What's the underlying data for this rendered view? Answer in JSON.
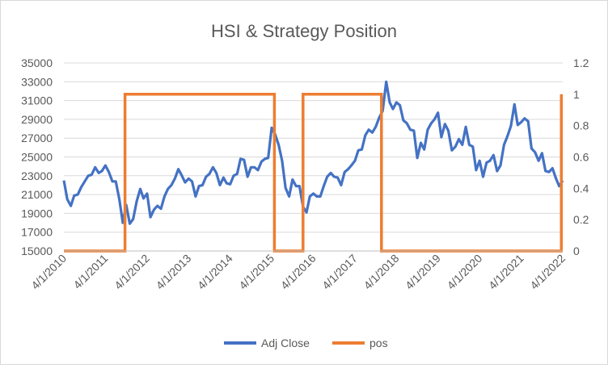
{
  "chart_data": {
    "type": "line",
    "title": "HSI & Strategy Position",
    "x_tick_labels": [
      "4/1/2010",
      "4/1/2011",
      "4/1/2012",
      "4/1/2013",
      "4/1/2014",
      "4/1/2015",
      "4/1/2016",
      "4/1/2017",
      "4/1/2018",
      "4/1/2019",
      "4/1/2020",
      "4/1/2021",
      "4/1/2022"
    ],
    "xlim": [
      "2010-04-01",
      "2022-04-01"
    ],
    "y_left": {
      "lim": [
        15000,
        35000
      ],
      "ticks": [
        "15000",
        "17000",
        "19000",
        "21000",
        "23000",
        "25000",
        "27000",
        "29000",
        "31000",
        "33000",
        "35000"
      ]
    },
    "y_right": {
      "lim": [
        0,
        1.2
      ],
      "ticks": [
        "0",
        "0.2",
        "0.4",
        "0.6",
        "0.8",
        "1",
        "1.2"
      ]
    },
    "grid": true,
    "legend_position": "bottom",
    "series": [
      {
        "name": "Adj Close",
        "axis": "left",
        "color": "#4472C4",
        "points": [
          [
            "2010-04-01",
            22500
          ],
          [
            "2010-05-01",
            20500
          ],
          [
            "2010-06-01",
            19800
          ],
          [
            "2010-07-01",
            20900
          ],
          [
            "2010-08-01",
            21000
          ],
          [
            "2010-09-01",
            21800
          ],
          [
            "2010-10-01",
            22400
          ],
          [
            "2010-11-01",
            23000
          ],
          [
            "2010-12-01",
            23100
          ],
          [
            "2011-01-01",
            23900
          ],
          [
            "2011-02-01",
            23300
          ],
          [
            "2011-03-01",
            23500
          ],
          [
            "2011-04-01",
            24100
          ],
          [
            "2011-05-01",
            23400
          ],
          [
            "2011-06-01",
            22400
          ],
          [
            "2011-07-01",
            22400
          ],
          [
            "2011-08-01",
            20500
          ],
          [
            "2011-09-01",
            18000
          ],
          [
            "2011-10-01",
            19900
          ],
          [
            "2011-11-01",
            17900
          ],
          [
            "2011-12-01",
            18400
          ],
          [
            "2012-01-01",
            20300
          ],
          [
            "2012-02-01",
            21600
          ],
          [
            "2012-03-01",
            20600
          ],
          [
            "2012-04-01",
            21100
          ],
          [
            "2012-05-01",
            18600
          ],
          [
            "2012-06-01",
            19400
          ],
          [
            "2012-07-01",
            19800
          ],
          [
            "2012-08-01",
            19500
          ],
          [
            "2012-09-01",
            20800
          ],
          [
            "2012-10-01",
            21600
          ],
          [
            "2012-11-01",
            22000
          ],
          [
            "2012-12-01",
            22700
          ],
          [
            "2013-01-01",
            23700
          ],
          [
            "2013-02-01",
            23000
          ],
          [
            "2013-03-01",
            22300
          ],
          [
            "2013-04-01",
            22700
          ],
          [
            "2013-05-01",
            22400
          ],
          [
            "2013-06-01",
            20800
          ],
          [
            "2013-07-01",
            21900
          ],
          [
            "2013-08-01",
            22000
          ],
          [
            "2013-09-01",
            22900
          ],
          [
            "2013-10-01",
            23200
          ],
          [
            "2013-11-01",
            23900
          ],
          [
            "2013-12-01",
            23300
          ],
          [
            "2014-01-01",
            22000
          ],
          [
            "2014-02-01",
            22800
          ],
          [
            "2014-03-01",
            22200
          ],
          [
            "2014-04-01",
            22100
          ],
          [
            "2014-05-01",
            23000
          ],
          [
            "2014-06-01",
            23200
          ],
          [
            "2014-07-01",
            24800
          ],
          [
            "2014-08-01",
            24700
          ],
          [
            "2014-09-01",
            22900
          ],
          [
            "2014-10-01",
            23900
          ],
          [
            "2014-11-01",
            23900
          ],
          [
            "2014-12-01",
            23600
          ],
          [
            "2015-01-01",
            24500
          ],
          [
            "2015-02-01",
            24800
          ],
          [
            "2015-03-01",
            24900
          ],
          [
            "2015-04-01",
            28100
          ],
          [
            "2015-05-01",
            27400
          ],
          [
            "2015-06-01",
            26300
          ],
          [
            "2015-07-01",
            24600
          ],
          [
            "2015-08-01",
            21700
          ],
          [
            "2015-09-01",
            20800
          ],
          [
            "2015-10-01",
            22600
          ],
          [
            "2015-11-01",
            21900
          ],
          [
            "2015-12-01",
            21900
          ],
          [
            "2016-01-01",
            19700
          ],
          [
            "2016-02-01",
            19100
          ],
          [
            "2016-03-01",
            20800
          ],
          [
            "2016-04-01",
            21100
          ],
          [
            "2016-05-01",
            20800
          ],
          [
            "2016-06-01",
            20800
          ],
          [
            "2016-07-01",
            21900
          ],
          [
            "2016-08-01",
            22900
          ],
          [
            "2016-09-01",
            23300
          ],
          [
            "2016-10-01",
            22900
          ],
          [
            "2016-11-01",
            22800
          ],
          [
            "2016-12-01",
            22000
          ],
          [
            "2017-01-01",
            23400
          ],
          [
            "2017-02-01",
            23700
          ],
          [
            "2017-03-01",
            24100
          ],
          [
            "2017-04-01",
            24600
          ],
          [
            "2017-05-01",
            25700
          ],
          [
            "2017-06-01",
            25800
          ],
          [
            "2017-07-01",
            27300
          ],
          [
            "2017-08-01",
            27900
          ],
          [
            "2017-09-01",
            27600
          ],
          [
            "2017-10-01",
            28200
          ],
          [
            "2017-11-01",
            29200
          ],
          [
            "2017-12-01",
            29900
          ],
          [
            "2018-01-01",
            33000
          ],
          [
            "2018-02-01",
            30800
          ],
          [
            "2018-03-01",
            30100
          ],
          [
            "2018-04-01",
            30800
          ],
          [
            "2018-05-01",
            30500
          ],
          [
            "2018-06-01",
            28900
          ],
          [
            "2018-07-01",
            28600
          ],
          [
            "2018-08-01",
            27900
          ],
          [
            "2018-09-01",
            27800
          ],
          [
            "2018-10-01",
            24900
          ],
          [
            "2018-11-01",
            26500
          ],
          [
            "2018-12-01",
            25800
          ],
          [
            "2019-01-01",
            27900
          ],
          [
            "2019-02-01",
            28600
          ],
          [
            "2019-03-01",
            29000
          ],
          [
            "2019-04-01",
            29700
          ],
          [
            "2019-05-01",
            27100
          ],
          [
            "2019-06-01",
            28500
          ],
          [
            "2019-07-01",
            27800
          ],
          [
            "2019-08-01",
            25700
          ],
          [
            "2019-09-01",
            26100
          ],
          [
            "2019-10-01",
            26900
          ],
          [
            "2019-11-01",
            26300
          ],
          [
            "2019-12-01",
            28200
          ],
          [
            "2020-01-01",
            26300
          ],
          [
            "2020-02-01",
            26100
          ],
          [
            "2020-03-01",
            23600
          ],
          [
            "2020-04-01",
            24600
          ],
          [
            "2020-05-01",
            22900
          ],
          [
            "2020-06-01",
            24400
          ],
          [
            "2020-07-01",
            24600
          ],
          [
            "2020-08-01",
            25200
          ],
          [
            "2020-09-01",
            23500
          ],
          [
            "2020-10-01",
            24100
          ],
          [
            "2020-11-01",
            26300
          ],
          [
            "2020-12-01",
            27200
          ],
          [
            "2021-01-01",
            28300
          ],
          [
            "2021-02-01",
            30600
          ],
          [
            "2021-03-01",
            28400
          ],
          [
            "2021-04-01",
            28700
          ],
          [
            "2021-05-01",
            29100
          ],
          [
            "2021-06-01",
            28800
          ],
          [
            "2021-07-01",
            25900
          ],
          [
            "2021-08-01",
            25500
          ],
          [
            "2021-09-01",
            24600
          ],
          [
            "2021-10-01",
            25400
          ],
          [
            "2021-11-01",
            23500
          ],
          [
            "2021-12-01",
            23400
          ],
          [
            "2022-01-01",
            23800
          ],
          [
            "2022-02-01",
            22700
          ],
          [
            "2022-03-01",
            21900
          ],
          [
            "2022-04-01",
            22500
          ]
        ]
      },
      {
        "name": "pos",
        "axis": "right",
        "color": "#ED7D31",
        "points": [
          [
            "2010-04-01",
            0
          ],
          [
            "2011-09-20",
            0
          ],
          [
            "2011-09-20",
            1
          ],
          [
            "2015-04-25",
            1
          ],
          [
            "2015-04-25",
            0
          ],
          [
            "2016-01-01",
            0
          ],
          [
            "2016-01-01",
            1
          ],
          [
            "2017-11-20",
            1
          ],
          [
            "2017-11-20",
            0
          ],
          [
            "2022-03-20",
            0
          ],
          [
            "2022-03-20",
            1
          ]
        ]
      }
    ]
  }
}
